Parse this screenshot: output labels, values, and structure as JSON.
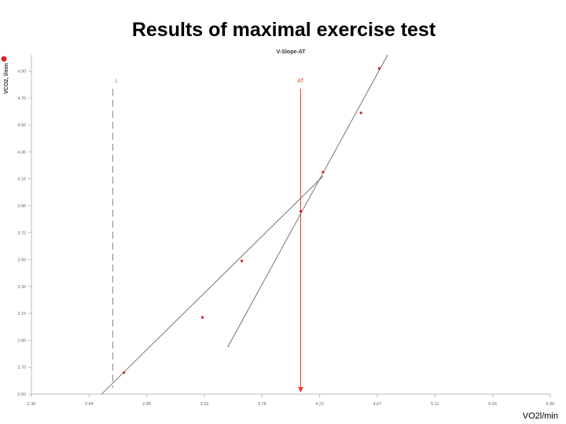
{
  "slide": {
    "title": "Results of maximal exercise test",
    "x_unit_label": "VO2l/min"
  },
  "chart_data": {
    "type": "scatter",
    "title": "V-Slope-AT",
    "ylabel": "VCO2, l/min",
    "xlabel": "VO2l/min",
    "xlim": [
      2.3,
      6.0
    ],
    "ylim": [
      2.5,
      5.02
    ],
    "x_ticks": [
      "2.30",
      "2.44",
      "2.85",
      "3.33",
      "3.78",
      "4.22",
      "4.67",
      "5.11",
      "5.56",
      "6.00"
    ],
    "y_ticks": [
      "2.50",
      "2.70",
      "2.90",
      "3.10",
      "3.30",
      "3.50",
      "3.70",
      "3.90",
      "4.10",
      "4.30",
      "4.50",
      "4.70",
      "4.90"
    ],
    "points": [
      {
        "x": 2.96,
        "y": 2.66
      },
      {
        "x": 3.52,
        "y": 3.07
      },
      {
        "x": 3.8,
        "y": 3.49
      },
      {
        "x": 4.22,
        "y": 3.86
      },
      {
        "x": 4.38,
        "y": 4.15
      },
      {
        "x": 4.65,
        "y": 4.59
      },
      {
        "x": 4.78,
        "y": 4.92
      }
    ],
    "fit_lines": [
      {
        "x": [
          2.8,
          4.38
        ],
        "y": [
          2.5,
          4.12
        ]
      },
      {
        "x": [
          3.7,
          4.84
        ],
        "y": [
          2.85,
          5.02
        ]
      }
    ],
    "reference_lines": [
      {
        "label": "L",
        "x": 2.88,
        "style": "dashed",
        "color": "#888888"
      },
      {
        "label": "AT",
        "x": 4.22,
        "style": "solid",
        "color": "#e8402a"
      }
    ],
    "grid": false,
    "colors": {
      "points": "#d62020",
      "fit": "#555555",
      "at": "#e8402a",
      "axis": "#bbbbbb",
      "legend_marker": "#e02020"
    },
    "legend_marker_icon": "red-dot"
  }
}
